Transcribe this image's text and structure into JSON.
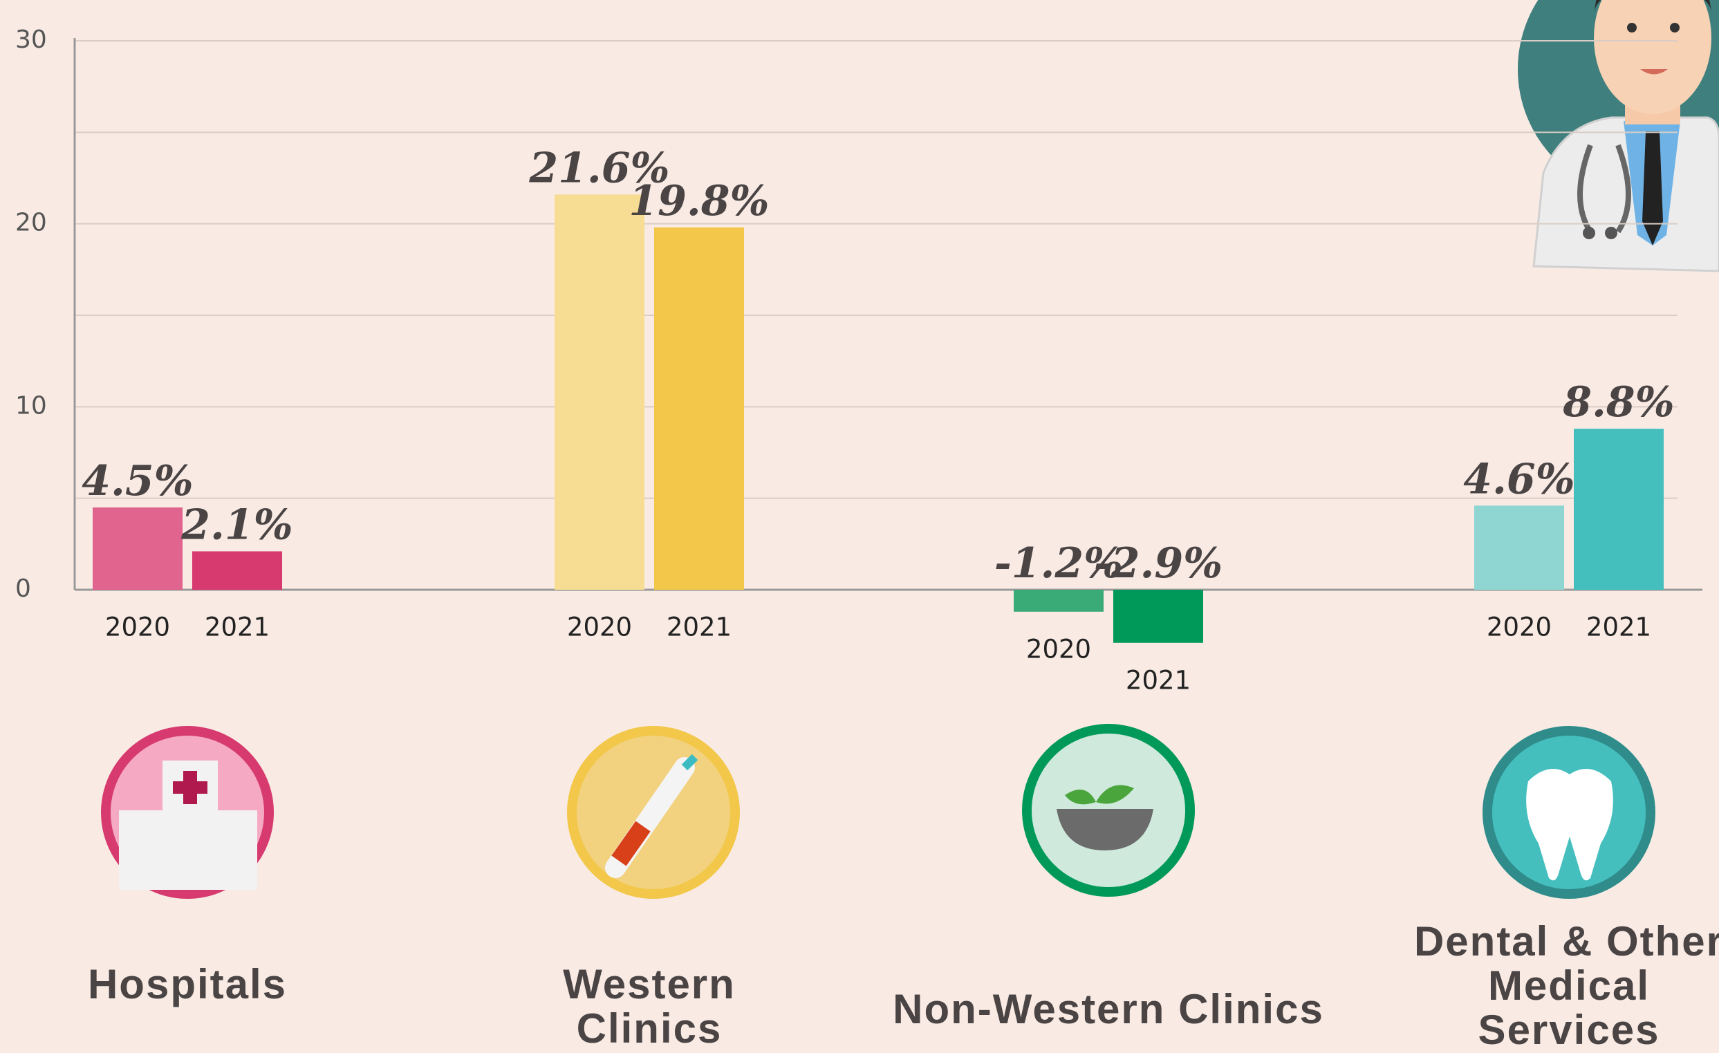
{
  "chart_data": {
    "type": "bar",
    "categories": [
      "Hospitals",
      "Western Clinics",
      "Non-Western Clinics",
      "Dental & Other Medical Services"
    ],
    "series": [
      {
        "name": "2020",
        "values": [
          4.5,
          21.6,
          -1.2,
          4.6
        ],
        "value_labels": [
          "4.5%",
          "21.6%",
          "-1.2%",
          "4.6%"
        ],
        "colors": [
          "#e0648e",
          "#f7dc94",
          "#3aaa76",
          "#8fd6d3"
        ]
      },
      {
        "name": "2021",
        "values": [
          2.1,
          19.8,
          -2.9,
          8.8
        ],
        "value_labels": [
          "2.1%",
          "19.8%",
          "-2.9%",
          "8.8%"
        ],
        "colors": [
          "#d63a6f",
          "#f2c74a",
          "#00995a",
          "#45bfbe"
        ]
      }
    ],
    "ylim": [
      0,
      30
    ],
    "yticks": [
      0,
      10,
      20,
      30
    ],
    "minor_yticks": [
      5,
      15,
      25
    ],
    "grid": true
  }
}
